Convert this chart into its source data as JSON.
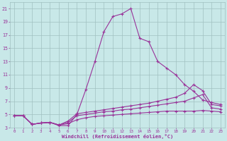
{
  "xlabel": "Windchill (Refroidissement éolien,°C)",
  "background_color": "#c8e8e8",
  "grid_color": "#a0c0c0",
  "line_color": "#993399",
  "xlim": [
    -0.5,
    23.5
  ],
  "ylim": [
    3,
    22
  ],
  "yticks": [
    3,
    5,
    7,
    9,
    11,
    13,
    15,
    17,
    19,
    21
  ],
  "xticks": [
    0,
    1,
    2,
    3,
    4,
    5,
    6,
    7,
    8,
    9,
    10,
    11,
    12,
    13,
    14,
    15,
    16,
    17,
    18,
    19,
    20,
    21,
    22,
    23
  ],
  "series": [
    {
      "x": [
        0,
        1,
        2,
        3,
        4,
        5,
        6,
        7,
        8,
        9,
        10,
        11,
        12,
        13,
        14,
        15,
        16,
        17,
        18,
        19,
        20,
        21,
        22,
        23
      ],
      "y": [
        4.8,
        4.8,
        3.5,
        3.7,
        3.8,
        3.3,
        3.3,
        5.0,
        8.8,
        13.0,
        17.5,
        19.8,
        20.2,
        21.0,
        16.5,
        16.0,
        13.0,
        12.0,
        11.0,
        9.5,
        8.5,
        7.2,
        6.8,
        6.5
      ]
    },
    {
      "x": [
        0,
        1,
        2,
        3,
        4,
        5,
        6,
        7,
        8,
        9,
        10,
        11,
        12,
        13,
        14,
        15,
        16,
        17,
        18,
        19,
        20,
        21,
        22,
        23
      ],
      "y": [
        4.8,
        4.8,
        3.5,
        3.7,
        3.8,
        3.4,
        4.0,
        5.1,
        5.3,
        5.5,
        5.7,
        5.9,
        6.1,
        6.3,
        6.5,
        6.7,
        7.0,
        7.3,
        7.6,
        8.2,
        9.5,
        8.6,
        6.5,
        6.3
      ]
    },
    {
      "x": [
        0,
        1,
        2,
        3,
        4,
        5,
        6,
        7,
        8,
        9,
        10,
        11,
        12,
        13,
        14,
        15,
        16,
        17,
        18,
        19,
        20,
        21,
        22,
        23
      ],
      "y": [
        4.8,
        4.8,
        3.5,
        3.7,
        3.8,
        3.4,
        3.8,
        4.8,
        5.0,
        5.2,
        5.4,
        5.5,
        5.7,
        5.8,
        6.0,
        6.2,
        6.4,
        6.6,
        6.8,
        7.0,
        7.5,
        8.0,
        6.0,
        5.8
      ]
    },
    {
      "x": [
        0,
        1,
        2,
        3,
        4,
        5,
        6,
        7,
        8,
        9,
        10,
        11,
        12,
        13,
        14,
        15,
        16,
        17,
        18,
        19,
        20,
        21,
        22,
        23
      ],
      "y": [
        4.8,
        4.8,
        3.5,
        3.7,
        3.8,
        3.4,
        3.6,
        4.2,
        4.5,
        4.7,
        4.8,
        4.9,
        5.0,
        5.1,
        5.2,
        5.3,
        5.4,
        5.5,
        5.5,
        5.5,
        5.5,
        5.6,
        5.5,
        5.4
      ]
    }
  ]
}
